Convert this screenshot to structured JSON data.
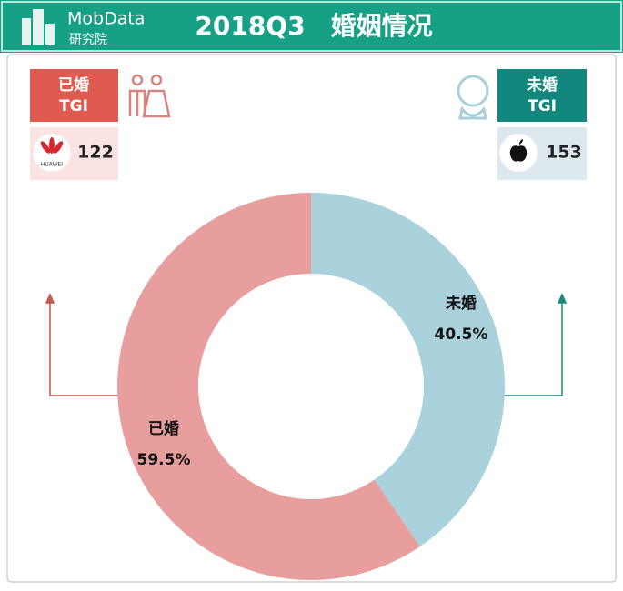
{
  "header": {
    "brand": "MobData",
    "brand_sub": "研究院",
    "title": "2018Q3　婚姻情况"
  },
  "tgi": [
    {
      "label": "已婚",
      "metric": "TGI",
      "brand": "HUAWEI",
      "value": "122"
    },
    {
      "label": "未婚",
      "metric": "TGI",
      "value": "153"
    }
  ],
  "chart_data": {
    "type": "donut",
    "categories": [
      "未婚",
      "已婚"
    ],
    "values": [
      40.5,
      59.5
    ],
    "value_labels": [
      "40.5%",
      "59.5%"
    ],
    "colors": [
      "#a9d2dc",
      "#e89e9d"
    ]
  }
}
